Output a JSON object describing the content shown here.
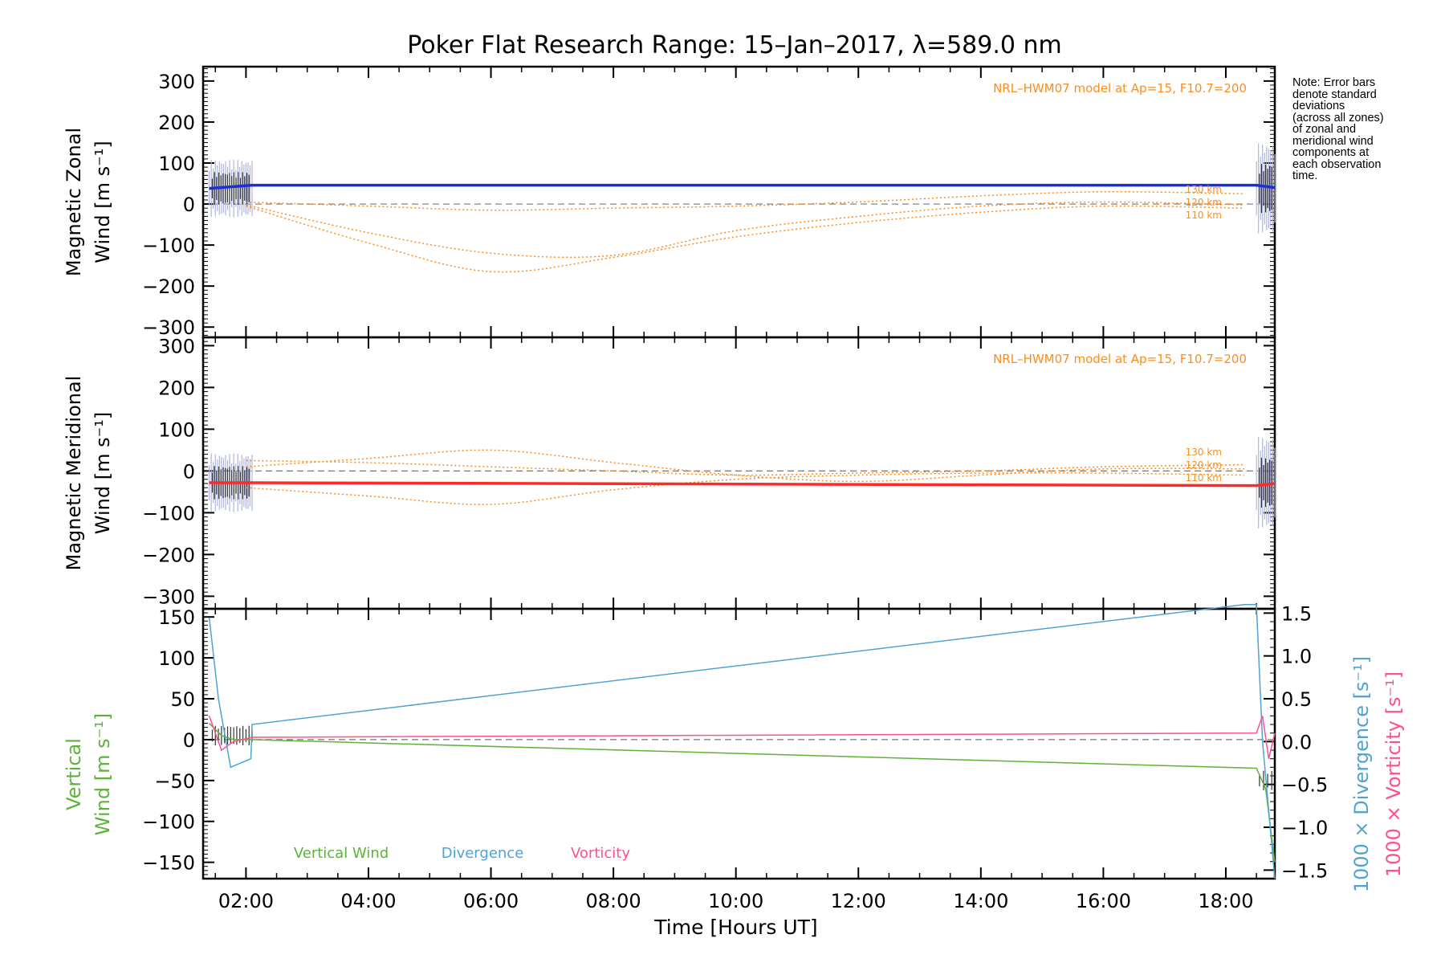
{
  "title": "Poker Flat Research Range: 15–Jan–2017, λ=589.0 nm",
  "note": "Note: Error bars\ndenote standard\ndeviations\n(across all zones)\nof zonal and\nmeridional wind\ncomponents at\neach observation\ntime.",
  "xlabel": "Time [Hours UT]",
  "colors": {
    "zonal": "#1a2fd6",
    "meridional": "#ff2a2a",
    "model": "#ff8c1a",
    "vertical": "#5db33a",
    "divergence": "#4fa3d1",
    "vorticity": "#ff4f8f",
    "error": "#b0b4e0",
    "dashed": "#777777"
  },
  "chart_data": [
    {
      "type": "line",
      "panel": "zonal",
      "ylabel_line1": "Magnetic Zonal",
      "ylabel_line2": "Wind [m s⁻¹]",
      "model_label": "NRL–HWM07 model at Ap=15, F10.7=200",
      "xlim": [
        1.3,
        18.8
      ],
      "ylim": [
        -325,
        335
      ],
      "xticks": [
        2,
        4,
        6,
        8,
        10,
        12,
        14,
        16,
        18
      ],
      "xtick_labels": [
        "02:00",
        "04:00",
        "06:00",
        "08:00",
        "10:00",
        "12:00",
        "14:00",
        "16:00",
        "18:00"
      ],
      "yticks": [
        300,
        200,
        100,
        0,
        -100,
        -200,
        -300
      ],
      "series": [
        {
          "x": [
            1.4,
            2.1,
            18.5,
            18.8
          ],
          "y": [
            38,
            46,
            46,
            40
          ]
        },
        {
          "name": "110 km",
          "x": [
            2.0,
            4,
            6,
            8,
            10,
            12,
            14,
            16,
            18.3
          ],
          "y": [
            -5,
            -95,
            -165,
            -130,
            -80,
            -45,
            -20,
            -5,
            -10
          ]
        },
        {
          "name": "120 km",
          "x": [
            2.0,
            4,
            6,
            8,
            10,
            12,
            14,
            16,
            18.3
          ],
          "y": [
            -2,
            -70,
            -120,
            -125,
            -65,
            -30,
            -5,
            5,
            -2
          ]
        },
        {
          "name": "130 km",
          "x": [
            2.0,
            4,
            6,
            8,
            10,
            12,
            14,
            16,
            18.3
          ],
          "y": [
            5,
            -5,
            -15,
            -10,
            -5,
            5,
            20,
            30,
            25
          ]
        }
      ],
      "model_levels": [
        "130 km",
        "120 km",
        "110 km"
      ]
    },
    {
      "type": "line",
      "panel": "meridional",
      "ylabel_line1": "Magnetic Meridional",
      "ylabel_line2": "Wind [m s⁻¹]",
      "model_label": "NRL–HWM07 model at Ap=15, F10.7=200",
      "xlim": [
        1.3,
        18.8
      ],
      "ylim": [
        -330,
        320
      ],
      "yticks": [
        300,
        200,
        100,
        0,
        -100,
        -200,
        -300
      ],
      "series": [
        {
          "x": [
            1.4,
            2.1,
            18.5,
            18.8
          ],
          "y": [
            -28,
            -28,
            -35,
            -30
          ]
        },
        {
          "name": "110 km",
          "x": [
            2.0,
            4,
            6,
            8,
            10,
            12,
            14,
            16,
            18.3
          ],
          "y": [
            -40,
            -60,
            -80,
            -45,
            -20,
            -10,
            -5,
            -5,
            -10
          ]
        },
        {
          "name": "120 km",
          "x": [
            2.0,
            4,
            6,
            8,
            10,
            12,
            14,
            16,
            18.3
          ],
          "y": [
            10,
            30,
            50,
            20,
            -10,
            -25,
            -10,
            5,
            5
          ]
        },
        {
          "name": "130 km",
          "x": [
            2.0,
            4,
            6,
            8,
            10,
            12,
            14,
            16,
            18.3
          ],
          "y": [
            25,
            20,
            10,
            0,
            -10,
            -5,
            0,
            10,
            15
          ]
        }
      ],
      "model_levels": [
        "130 km",
        "120 km",
        "110 km"
      ]
    },
    {
      "type": "line",
      "panel": "vertical",
      "ylabel_line1": "Vertical",
      "ylabel_line2": "Wind [m s⁻¹]",
      "y2label_div": "1000 × Divergence [s⁻¹]",
      "y2label_vort": "1000 × Vorticity [s⁻¹]",
      "xlim": [
        1.3,
        18.8
      ],
      "ylim": [
        -170,
        160
      ],
      "yticks": [
        150,
        100,
        50,
        0,
        -50,
        -100,
        -150
      ],
      "y2lim": [
        -1.6,
        1.55
      ],
      "y2ticks": [
        1.5,
        1.0,
        0.5,
        0.0,
        -0.5,
        -1.0,
        -1.5
      ],
      "y2tick_labels": [
        "1.5",
        "1.0",
        "0.5",
        "0.0",
        "−0.5",
        "−1.0",
        "−1.5"
      ],
      "legend": [
        "Vertical Wind",
        "Divergence",
        "Vorticity"
      ],
      "series": [
        {
          "name": "Vertical Wind",
          "x": [
            1.4,
            1.6,
            1.8,
            2.1,
            18.5,
            18.65,
            18.8
          ],
          "y": [
            20,
            5,
            0,
            0,
            -35,
            -60,
            -150
          ]
        },
        {
          "name": "Divergence",
          "x": [
            1.4,
            1.55,
            1.75,
            2.08,
            2.1,
            18.3,
            18.5,
            18.6,
            18.8
          ],
          "y": [
            1.45,
            0.5,
            -0.3,
            -0.2,
            0.2,
            1.6,
            1.6,
            0.0,
            -1.6
          ]
        },
        {
          "name": "Vorticity",
          "x": [
            1.4,
            1.6,
            1.8,
            2.1,
            18.5,
            18.6,
            18.7,
            18.8
          ],
          "y": [
            0.3,
            -0.1,
            0.0,
            0.05,
            0.1,
            0.3,
            -0.2,
            0.1
          ]
        }
      ]
    }
  ]
}
